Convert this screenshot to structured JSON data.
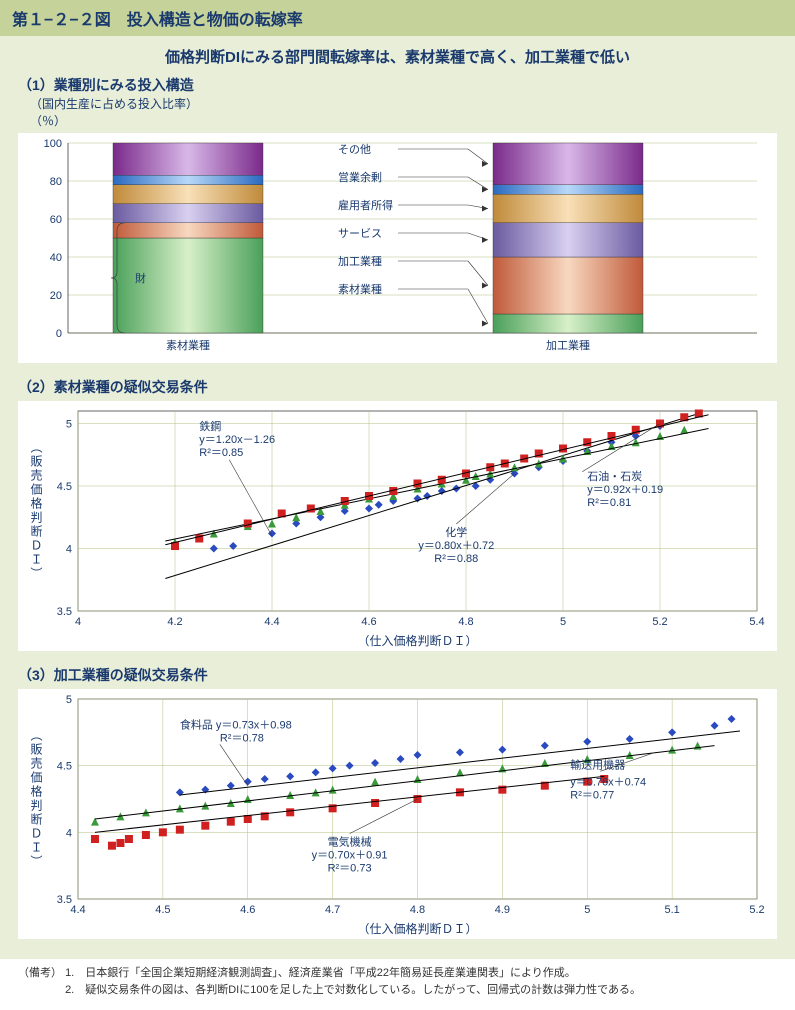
{
  "title": "第１−２−２図　投入構造と物価の転嫁率",
  "subtitle": "価格判断DIにみる部門間転嫁率は、素材業種で高く、加工業種で低い",
  "section1": {
    "heading": "（1）業種別にみる投入構造",
    "subnote1": "（国内生産に占める投入比率）",
    "subnote2": "（％）",
    "y_ticks": [
      0,
      20,
      40,
      60,
      80,
      100
    ],
    "categories": [
      "素材業種",
      "加工業種"
    ],
    "legend_items": [
      "その他",
      "営業余剰",
      "雇用者所得",
      "サービス",
      "加工業種",
      "素材業種"
    ],
    "brace_label": "財",
    "colors": {
      "sozai": {
        "grad": [
          "#4aa05a",
          "#d8f0c8",
          "#4aa05a"
        ]
      },
      "kakou": {
        "grad": [
          "#c05a3a",
          "#f8d8c0",
          "#c05a3a"
        ]
      },
      "service": {
        "grad": [
          "#6a5aa0",
          "#d8d0f0",
          "#6a5aa0"
        ]
      },
      "koyou": {
        "grad": [
          "#c08a3a",
          "#f8e0b8",
          "#c08a3a"
        ]
      },
      "eigyo": {
        "grad": [
          "#2a6ac0",
          "#b8d8f8",
          "#2a6ac0"
        ]
      },
      "sonota": {
        "grad": [
          "#7a2a8a",
          "#d8b8e8",
          "#7a2a8a"
        ]
      }
    },
    "bars": {
      "素材業種": {
        "sozai": 50,
        "kakou": 8,
        "service": 10,
        "koyou": 10,
        "eigyo": 5,
        "sonota": 17
      },
      "加工業種": {
        "sozai": 10,
        "kakou": 30,
        "service": 18,
        "koyou": 15,
        "eigyo": 5,
        "sonota": 22
      }
    }
  },
  "section2": {
    "heading": "（2）素材業種の疑似交易条件",
    "xlabel": "（仕入価格判断ＤＩ）",
    "ylabel": "（販売価格判断ＤＩ）",
    "xlim": [
      4,
      5.4
    ],
    "xtick_step": 0.2,
    "ylim": [
      3.5,
      5.1
    ],
    "ytick_step": 0.5,
    "ytick_minor": true,
    "series": [
      {
        "name": "鉄鋼",
        "marker": "diamond",
        "color": "#2a4ac0",
        "eq": "y＝1.20x－1.26",
        "r2": "R²＝0.85",
        "line": {
          "x1": 4.18,
          "y1": 3.76,
          "x2": 5.28,
          "y2": 5.08
        },
        "ann_pos": {
          "x": 4.25,
          "y": 4.95
        }
      },
      {
        "name": "化学",
        "marker": "triangle",
        "color": "#3a9a3a",
        "eq": "y＝0.80x＋0.72",
        "r2": "R²＝0.88",
        "line": {
          "x1": 4.18,
          "y1": 4.06,
          "x2": 5.3,
          "y2": 4.96
        },
        "ann_pos": {
          "x": 4.78,
          "y": 4.1
        }
      },
      {
        "name": "石油・石炭",
        "marker": "square",
        "color": "#d02020",
        "eq": "y＝0.92x＋0.19",
        "r2": "R²＝0.81",
        "line": {
          "x1": 4.18,
          "y1": 4.03,
          "x2": 5.3,
          "y2": 5.07
        },
        "ann_pos": {
          "x": 5.05,
          "y": 4.55
        }
      }
    ],
    "points": {
      "鉄鋼": [
        [
          4.28,
          4.0
        ],
        [
          4.32,
          4.02
        ],
        [
          4.4,
          4.12
        ],
        [
          4.45,
          4.2
        ],
        [
          4.5,
          4.25
        ],
        [
          4.55,
          4.3
        ],
        [
          4.6,
          4.32
        ],
        [
          4.62,
          4.35
        ],
        [
          4.65,
          4.38
        ],
        [
          4.7,
          4.4
        ],
        [
          4.72,
          4.42
        ],
        [
          4.75,
          4.46
        ],
        [
          4.78,
          4.48
        ],
        [
          4.82,
          4.5
        ],
        [
          4.85,
          4.55
        ],
        [
          4.9,
          4.6
        ],
        [
          4.95,
          4.65
        ],
        [
          5.0,
          4.7
        ],
        [
          5.05,
          4.78
        ],
        [
          5.1,
          4.85
        ],
        [
          5.15,
          4.9
        ],
        [
          5.2,
          4.98
        ],
        [
          5.25,
          5.05
        ]
      ],
      "化学": [
        [
          4.2,
          4.05
        ],
        [
          4.28,
          4.12
        ],
        [
          4.35,
          4.18
        ],
        [
          4.4,
          4.2
        ],
        [
          4.45,
          4.25
        ],
        [
          4.5,
          4.3
        ],
        [
          4.55,
          4.35
        ],
        [
          4.6,
          4.4
        ],
        [
          4.65,
          4.42
        ],
        [
          4.7,
          4.48
        ],
        [
          4.75,
          4.52
        ],
        [
          4.8,
          4.55
        ],
        [
          4.82,
          4.58
        ],
        [
          4.85,
          4.6
        ],
        [
          4.9,
          4.65
        ],
        [
          4.95,
          4.68
        ],
        [
          5.0,
          4.72
        ],
        [
          5.05,
          4.78
        ],
        [
          5.1,
          4.82
        ],
        [
          5.15,
          4.85
        ],
        [
          5.2,
          4.9
        ],
        [
          5.25,
          4.95
        ]
      ],
      "石油・石炭": [
        [
          4.2,
          4.02
        ],
        [
          4.25,
          4.08
        ],
        [
          4.35,
          4.2
        ],
        [
          4.42,
          4.28
        ],
        [
          4.48,
          4.32
        ],
        [
          4.55,
          4.38
        ],
        [
          4.6,
          4.42
        ],
        [
          4.65,
          4.46
        ],
        [
          4.7,
          4.52
        ],
        [
          4.75,
          4.55
        ],
        [
          4.8,
          4.6
        ],
        [
          4.85,
          4.65
        ],
        [
          4.88,
          4.68
        ],
        [
          4.92,
          4.72
        ],
        [
          4.95,
          4.76
        ],
        [
          5.0,
          4.8
        ],
        [
          5.05,
          4.85
        ],
        [
          5.1,
          4.9
        ],
        [
          5.15,
          4.95
        ],
        [
          5.2,
          5.0
        ],
        [
          5.25,
          5.05
        ],
        [
          5.28,
          5.08
        ]
      ]
    }
  },
  "section3": {
    "heading": "（3）加工業種の疑似交易条件",
    "xlabel": "（仕入価格判断ＤＩ）",
    "ylabel": "（販売価格判断ＤＩ）",
    "xlim": [
      4.4,
      5.2
    ],
    "xtick_step": 0.1,
    "ylim": [
      3.5,
      5.0
    ],
    "ytick_step": 0.5,
    "series": [
      {
        "name": "食料品",
        "marker": "diamond",
        "color": "#2a4ac0",
        "eq": "食料品 y＝0.73x＋0.98",
        "r2": "R²＝0.78",
        "line": {
          "x1": 4.52,
          "y1": 4.28,
          "x2": 5.18,
          "y2": 4.76
        },
        "ann_pos": {
          "x": 4.52,
          "y": 4.78
        }
      },
      {
        "name": "輸送用機器",
        "marker": "triangle",
        "color": "#3a9a3a",
        "eq": "y＝0.76x＋0.74",
        "r2": "R²＝0.77",
        "line": {
          "x1": 4.42,
          "y1": 4.1,
          "x2": 5.15,
          "y2": 4.65
        },
        "ann_pos": {
          "x": 4.98,
          "y": 4.35
        },
        "label_pos": {
          "x": 4.98,
          "y": 4.48
        }
      },
      {
        "name": "電気機械",
        "marker": "square",
        "color": "#d02020",
        "eq": "y＝0.70x＋0.91",
        "r2": "R²＝0.73",
        "line": {
          "x1": 4.42,
          "y1": 4.0,
          "x2": 5.02,
          "y2": 4.42
        },
        "ann_pos": {
          "x": 4.72,
          "y": 3.9
        }
      }
    ],
    "points": {
      "食料品": [
        [
          4.52,
          4.3
        ],
        [
          4.55,
          4.32
        ],
        [
          4.58,
          4.35
        ],
        [
          4.6,
          4.38
        ],
        [
          4.62,
          4.4
        ],
        [
          4.65,
          4.42
        ],
        [
          4.68,
          4.45
        ],
        [
          4.7,
          4.48
        ],
        [
          4.72,
          4.5
        ],
        [
          4.75,
          4.52
        ],
        [
          4.78,
          4.55
        ],
        [
          4.8,
          4.58
        ],
        [
          4.85,
          4.6
        ],
        [
          4.9,
          4.62
        ],
        [
          4.95,
          4.65
        ],
        [
          5.0,
          4.68
        ],
        [
          5.05,
          4.7
        ],
        [
          5.1,
          4.75
        ],
        [
          5.15,
          4.8
        ],
        [
          5.17,
          4.85
        ]
      ],
      "輸送用機器": [
        [
          4.42,
          4.08
        ],
        [
          4.45,
          4.12
        ],
        [
          4.48,
          4.15
        ],
        [
          4.52,
          4.18
        ],
        [
          4.55,
          4.2
        ],
        [
          4.58,
          4.22
        ],
        [
          4.6,
          4.25
        ],
        [
          4.65,
          4.28
        ],
        [
          4.68,
          4.3
        ],
        [
          4.7,
          4.32
        ],
        [
          4.75,
          4.38
        ],
        [
          4.8,
          4.4
        ],
        [
          4.85,
          4.45
        ],
        [
          4.9,
          4.48
        ],
        [
          4.95,
          4.52
        ],
        [
          5.0,
          4.55
        ],
        [
          5.05,
          4.58
        ],
        [
          5.1,
          4.62
        ],
        [
          5.13,
          4.65
        ]
      ],
      "電気機械": [
        [
          4.42,
          3.95
        ],
        [
          4.44,
          3.9
        ],
        [
          4.45,
          3.92
        ],
        [
          4.46,
          3.95
        ],
        [
          4.48,
          3.98
        ],
        [
          4.5,
          4.0
        ],
        [
          4.52,
          4.02
        ],
        [
          4.55,
          4.05
        ],
        [
          4.58,
          4.08
        ],
        [
          4.6,
          4.1
        ],
        [
          4.62,
          4.12
        ],
        [
          4.65,
          4.15
        ],
        [
          4.7,
          4.18
        ],
        [
          4.75,
          4.22
        ],
        [
          4.8,
          4.25
        ],
        [
          4.85,
          4.3
        ],
        [
          4.9,
          4.32
        ],
        [
          4.95,
          4.35
        ],
        [
          5.0,
          4.38
        ],
        [
          5.02,
          4.4
        ]
      ]
    }
  },
  "notes": {
    "prefix": "（備考）",
    "items": [
      "1.　日本銀行「全国企業短期経済観測調査」、経済産業省「平成22年簡易延長産業連関表」により作成。",
      "2.　疑似交易条件の図は、各判断DIに100を足した上で対数化している。したがって、回帰式の計数は弾力性である。"
    ]
  }
}
